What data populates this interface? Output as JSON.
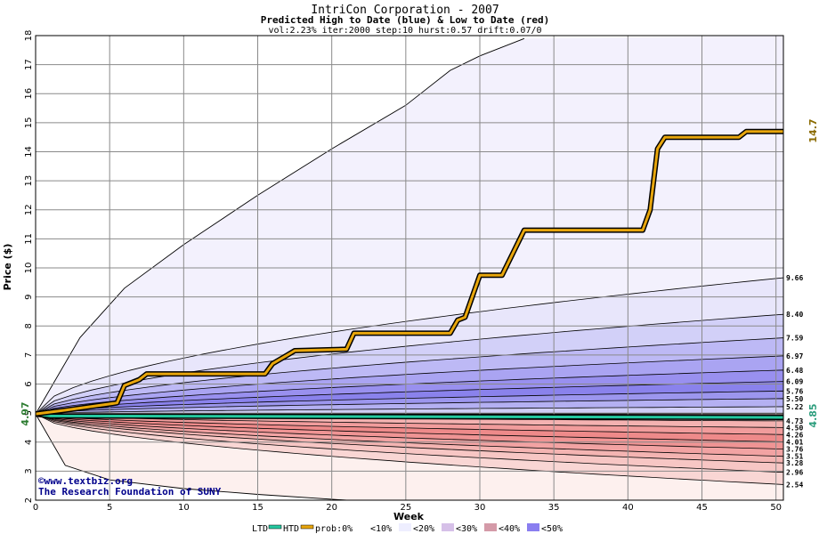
{
  "chart_data": {
    "type": "area",
    "title": "IntriCon Corporation - 2007",
    "subtitle": "Predicted High to Date (blue) &  Low to Date (red)",
    "params": "vol:2.23% iter:2000 step:10 hurst:0.57 drift:0.07/0",
    "xlabel": "Week",
    "ylabel": "Price ($)",
    "xlim": [
      0,
      50
    ],
    "ylim": [
      2,
      18
    ],
    "x_ticks": [
      0,
      5,
      10,
      15,
      20,
      25,
      30,
      35,
      40,
      45,
      50
    ],
    "y_ticks": [
      2,
      3,
      4,
      5,
      6,
      7,
      8,
      9,
      10,
      11,
      12,
      13,
      14,
      15,
      16,
      17,
      18
    ],
    "start_price": "4.97",
    "htd_final": "14.7",
    "ltd_final": "4.85",
    "high_band_endpoints": [
      "9.66",
      "8.40",
      "7.59",
      "6.97",
      "6.48",
      "6.09",
      "5.76",
      "5.50",
      "5.22"
    ],
    "low_band_endpoints": [
      "4.73",
      "4.50",
      "4.26",
      "4.01",
      "3.76",
      "3.51",
      "3.28",
      "2.96",
      "2.54"
    ],
    "high_bound_upper": [
      [
        0,
        4.97
      ],
      [
        3,
        7.6
      ],
      [
        6,
        9.3
      ],
      [
        10,
        10.8
      ],
      [
        15,
        12.5
      ],
      [
        20,
        14.1
      ],
      [
        25,
        15.6
      ],
      [
        28,
        16.8
      ],
      [
        30,
        17.3
      ],
      [
        33,
        17.9
      ]
    ],
    "low_bound_lower": [
      [
        0,
        4.97
      ],
      [
        2,
        3.2
      ],
      [
        5,
        2.7
      ],
      [
        10,
        2.4
      ],
      [
        15,
        2.2
      ],
      [
        21,
        2.0
      ]
    ],
    "htd_series": [
      [
        0,
        4.97
      ],
      [
        2,
        5.1
      ],
      [
        5.5,
        5.35
      ],
      [
        6,
        5.95
      ],
      [
        7,
        6.15
      ],
      [
        7.5,
        6.35
      ],
      [
        15.5,
        6.35
      ],
      [
        16,
        6.7
      ],
      [
        17,
        7.0
      ],
      [
        17.5,
        7.15
      ],
      [
        21,
        7.2
      ],
      [
        21.5,
        7.75
      ],
      [
        28,
        7.75
      ],
      [
        28.5,
        8.2
      ],
      [
        29,
        8.3
      ],
      [
        30,
        9.75
      ],
      [
        31.5,
        9.75
      ],
      [
        33,
        11.3
      ],
      [
        41,
        11.3
      ],
      [
        41.5,
        12.0
      ],
      [
        42,
        14.1
      ],
      [
        42.5,
        14.5
      ],
      [
        47.5,
        14.5
      ],
      [
        48,
        14.7
      ],
      [
        50.5,
        14.7
      ]
    ],
    "ltd_series": [
      [
        0,
        4.97
      ],
      [
        1,
        4.9
      ],
      [
        50.5,
        4.85
      ]
    ],
    "legend": {
      "ltd": "LTD",
      "htd": "HTD",
      "prob": "prob:0%",
      "b10": "<10%",
      "b20": "<20%",
      "b30": "<30%",
      "b40": "<40%",
      "b50": "<50%"
    },
    "credit": [
      "©www.textbiz.org",
      "The Research Foundation of SUNY"
    ],
    "colors": {
      "htd_line": "#e8a60c",
      "ltd_line": "#25c9a0",
      "grid": "#8a8a8a",
      "start_label": "#2e7d32",
      "htd_label": "#8b6b00",
      "ltd_label": "#2e9e7e"
    }
  }
}
